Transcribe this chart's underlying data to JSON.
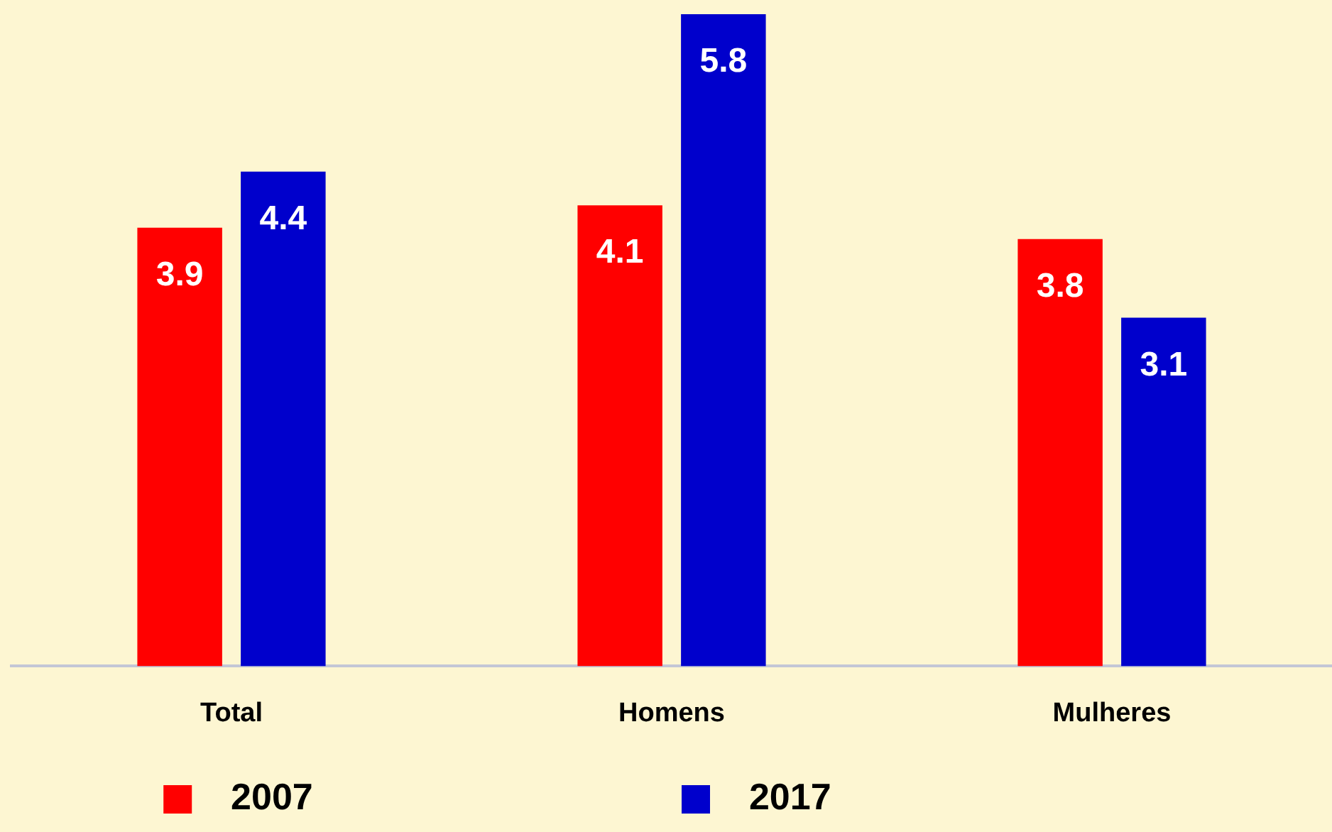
{
  "chart_data": {
    "type": "bar",
    "categories": [
      "Total",
      "Homens",
      "Mulheres"
    ],
    "series": [
      {
        "name": "2007",
        "color": "#ff0000",
        "values": [
          3.9,
          4.1,
          3.8
        ]
      },
      {
        "name": "2017",
        "color": "#0000cc",
        "values": [
          4.4,
          5.8,
          3.1
        ]
      }
    ],
    "ylim": [
      0,
      5.8
    ],
    "data_labels": true,
    "grid": false,
    "legend": "bottom"
  }
}
